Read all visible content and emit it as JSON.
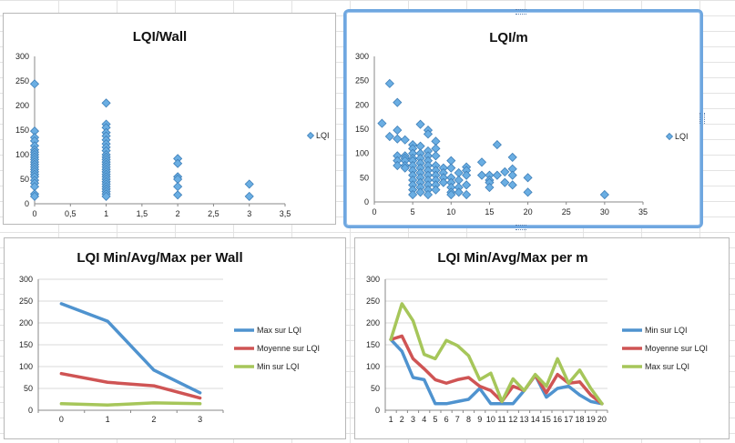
{
  "colors": {
    "blue": "#4f93cf",
    "red": "#cf5454",
    "green": "#a6c65a",
    "marker": "#6aaee3",
    "markerStroke": "#3f7fb8",
    "grid": "#d9d9d9",
    "sheetGrid": "#e3e3e3"
  },
  "chart_data": [
    {
      "type": "scatter",
      "title": "LQI/Wall",
      "xlim": [
        0,
        3.5
      ],
      "ylim": [
        0,
        300
      ],
      "x_ticks": [
        "0",
        "0,5",
        "1",
        "1,5",
        "2",
        "2,5",
        "3",
        "3,5"
      ],
      "y_ticks": [
        "0",
        "50",
        "100",
        "150",
        "200",
        "250",
        "300"
      ],
      "series": [
        {
          "name": "LQI",
          "points": [
            [
              0,
              244
            ],
            [
              0,
              148
            ],
            [
              0,
              135
            ],
            [
              0,
              128
            ],
            [
              0,
              118
            ],
            [
              0,
              110
            ],
            [
              0,
              105
            ],
            [
              0,
              100
            ],
            [
              0,
              95
            ],
            [
              0,
              90
            ],
            [
              0,
              85
            ],
            [
              0,
              80
            ],
            [
              0,
              75
            ],
            [
              0,
              70
            ],
            [
              0,
              65
            ],
            [
              0,
              60
            ],
            [
              0,
              55
            ],
            [
              0,
              48
            ],
            [
              0,
              42
            ],
            [
              0,
              35
            ],
            [
              0,
              20
            ],
            [
              0,
              15
            ],
            [
              1,
              205
            ],
            [
              1,
              162
            ],
            [
              1,
              155
            ],
            [
              1,
              145
            ],
            [
              1,
              138
            ],
            [
              1,
              130
            ],
            [
              1,
              122
            ],
            [
              1,
              115
            ],
            [
              1,
              108
            ],
            [
              1,
              100
            ],
            [
              1,
              95
            ],
            [
              1,
              90
            ],
            [
              1,
              85
            ],
            [
              1,
              80
            ],
            [
              1,
              75
            ],
            [
              1,
              70
            ],
            [
              1,
              65
            ],
            [
              1,
              60
            ],
            [
              1,
              55
            ],
            [
              1,
              50
            ],
            [
              1,
              45
            ],
            [
              1,
              40
            ],
            [
              1,
              35
            ],
            [
              1,
              30
            ],
            [
              1,
              25
            ],
            [
              1,
              20
            ],
            [
              1,
              15
            ],
            [
              2,
              92
            ],
            [
              2,
              82
            ],
            [
              2,
              55
            ],
            [
              2,
              50
            ],
            [
              2,
              35
            ],
            [
              2,
              18
            ],
            [
              3,
              40
            ],
            [
              3,
              15
            ]
          ]
        }
      ]
    },
    {
      "type": "scatter",
      "title": "LQI/m",
      "xlim": [
        0,
        35
      ],
      "ylim": [
        0,
        300
      ],
      "x_ticks": [
        "0",
        "5",
        "10",
        "15",
        "20",
        "25",
        "30",
        "35"
      ],
      "y_ticks": [
        "0",
        "50",
        "100",
        "150",
        "200",
        "250",
        "300"
      ],
      "series": [
        {
          "name": "LQI",
          "points": [
            [
              1,
              162
            ],
            [
              2,
              244
            ],
            [
              2,
              135
            ],
            [
              3,
              205
            ],
            [
              3,
              148
            ],
            [
              3,
              130
            ],
            [
              3,
              95
            ],
            [
              3,
              85
            ],
            [
              3,
              75
            ],
            [
              4,
              128
            ],
            [
              4,
              95
            ],
            [
              4,
              90
            ],
            [
              4,
              85
            ],
            [
              4,
              75
            ],
            [
              4,
              70
            ],
            [
              5,
              118
            ],
            [
              5,
              110
            ],
            [
              5,
              100
            ],
            [
              5,
              90
            ],
            [
              5,
              85
            ],
            [
              5,
              75
            ],
            [
              5,
              65
            ],
            [
              5,
              55
            ],
            [
              5,
              45
            ],
            [
              5,
              35
            ],
            [
              5,
              25
            ],
            [
              5,
              15
            ],
            [
              6,
              160
            ],
            [
              6,
              115
            ],
            [
              6,
              100
            ],
            [
              6,
              90
            ],
            [
              6,
              80
            ],
            [
              6,
              70
            ],
            [
              6,
              60
            ],
            [
              6,
              50
            ],
            [
              6,
              40
            ],
            [
              6,
              30
            ],
            [
              6,
              20
            ],
            [
              7,
              148
            ],
            [
              7,
              140
            ],
            [
              7,
              105
            ],
            [
              7,
              95
            ],
            [
              7,
              85
            ],
            [
              7,
              75
            ],
            [
              7,
              65
            ],
            [
              7,
              55
            ],
            [
              7,
              45
            ],
            [
              7,
              35
            ],
            [
              7,
              25
            ],
            [
              7,
              15
            ],
            [
              8,
              125
            ],
            [
              8,
              110
            ],
            [
              8,
              95
            ],
            [
              8,
              75
            ],
            [
              8,
              65
            ],
            [
              8,
              55
            ],
            [
              8,
              45
            ],
            [
              8,
              35
            ],
            [
              8,
              25
            ],
            [
              9,
              70
            ],
            [
              9,
              60
            ],
            [
              9,
              50
            ],
            [
              9,
              40
            ],
            [
              10,
              85
            ],
            [
              10,
              70
            ],
            [
              10,
              50
            ],
            [
              10,
              40
            ],
            [
              10,
              30
            ],
            [
              10,
              20
            ],
            [
              10,
              15
            ],
            [
              11,
              60
            ],
            [
              11,
              45
            ],
            [
              11,
              30
            ],
            [
              11,
              20
            ],
            [
              12,
              72
            ],
            [
              12,
              65
            ],
            [
              12,
              55
            ],
            [
              12,
              35
            ],
            [
              12,
              15
            ],
            [
              14,
              82
            ],
            [
              14,
              55
            ],
            [
              15,
              55
            ],
            [
              15,
              45
            ],
            [
              15,
              40
            ],
            [
              15,
              30
            ],
            [
              16,
              118
            ],
            [
              16,
              55
            ],
            [
              17,
              62
            ],
            [
              17,
              40
            ],
            [
              18,
              92
            ],
            [
              18,
              68
            ],
            [
              18,
              55
            ],
            [
              18,
              35
            ],
            [
              20,
              50
            ],
            [
              20,
              20
            ],
            [
              30,
              15
            ]
          ]
        }
      ]
    },
    {
      "type": "line",
      "title": "LQI Min/Avg/Max per Wall",
      "categories": [
        "0",
        "1",
        "2",
        "3"
      ],
      "ylim": [
        0,
        300
      ],
      "y_ticks": [
        "0",
        "50",
        "100",
        "150",
        "200",
        "250",
        "300"
      ],
      "series": [
        {
          "name": "Max sur LQI",
          "color": "#4f93cf",
          "values": [
            244,
            204,
            92,
            40
          ]
        },
        {
          "name": "Moyenne sur LQI",
          "color": "#cf5454",
          "values": [
            84,
            64,
            56,
            28
          ]
        },
        {
          "name": "Min sur LQI",
          "color": "#a6c65a",
          "values": [
            15,
            12,
            17,
            15
          ]
        }
      ]
    },
    {
      "type": "line",
      "title": "LQI Min/Avg/Max per m",
      "categories": [
        "1",
        "2",
        "3",
        "4",
        "5",
        "6",
        "7",
        "8",
        "9",
        "10",
        "11",
        "12",
        "13",
        "14",
        "15",
        "16",
        "17",
        "18",
        "19",
        "20"
      ],
      "ylim": [
        0,
        300
      ],
      "y_ticks": [
        "0",
        "50",
        "100",
        "150",
        "200",
        "250",
        "300"
      ],
      "series": [
        {
          "name": "Min sur LQI",
          "color": "#4f93cf",
          "values": [
            162,
            135,
            75,
            70,
            15,
            15,
            20,
            25,
            50,
            15,
            15,
            15,
            45,
            80,
            30,
            50,
            55,
            35,
            20,
            15
          ]
        },
        {
          "name": "Moyenne sur LQI",
          "color": "#cf5454",
          "values": [
            162,
            170,
            118,
            95,
            70,
            62,
            70,
            75,
            55,
            45,
            20,
            55,
            45,
            80,
            40,
            82,
            62,
            65,
            35,
            15
          ]
        },
        {
          "name": "Max sur LQI",
          "color": "#a6c65a",
          "values": [
            162,
            244,
            205,
            128,
            118,
            160,
            148,
            125,
            70,
            85,
            20,
            72,
            45,
            82,
            55,
            118,
            62,
            92,
            50,
            15
          ]
        }
      ]
    }
  ]
}
